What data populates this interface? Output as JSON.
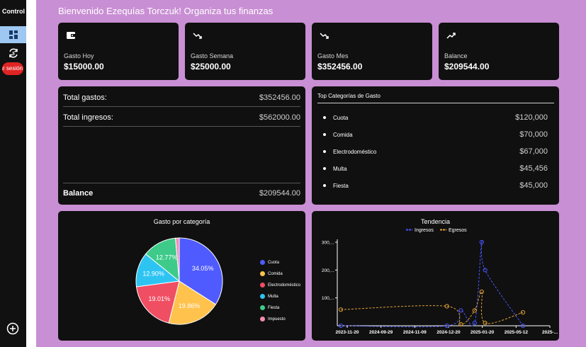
{
  "sidebar": {
    "title": "Control d",
    "logout_label": "Cerrar sesión",
    "icons": [
      "dashboard-icon",
      "sync-currency-icon",
      "add-circle-icon"
    ]
  },
  "header": {
    "greeting": "Bienvenido Ezequías Torczuk! Organiza tus finanzas"
  },
  "stats": [
    {
      "icon": "wallet-icon",
      "label": "Gasto Hoy",
      "value": "$15000.00"
    },
    {
      "icon": "trend-down-icon",
      "label": "Gasto Semana",
      "value": "$25000.00"
    },
    {
      "icon": "trend-down-icon",
      "label": "Gasto Mes",
      "value": "$352456.00"
    },
    {
      "icon": "trend-up-icon",
      "label": "Balance",
      "value": "$209544.00"
    }
  ],
  "summary": {
    "total_gastos_label": "Total gastos:",
    "total_gastos_value": "$352456.00",
    "total_ingresos_label": "Total ingresos:",
    "total_ingresos_value": "$562000.00",
    "balance_label": "Balance",
    "balance_value": "$209544.00"
  },
  "top_categories": {
    "title": "Top Categorías de Gasto",
    "items": [
      {
        "name": "Cuota",
        "amount": "$120,000"
      },
      {
        "name": "Comida",
        "amount": "$70,000"
      },
      {
        "name": "Electrodoméstico",
        "amount": "$67,000"
      },
      {
        "name": "Multa",
        "amount": "$45,456"
      },
      {
        "name": "Fiesta",
        "amount": "$45,000"
      }
    ]
  },
  "chart_data": [
    {
      "type": "pie",
      "title": "Gasto por categoría",
      "legend_position": "right",
      "categories": [
        "Cuota",
        "Comida",
        "Electrodoméstico",
        "Multa",
        "Fiesta",
        "Impuesto"
      ],
      "values": [
        34.05,
        19.86,
        19.01,
        12.9,
        12.77,
        1.41
      ],
      "labels": [
        "34.05%",
        "19.86%",
        "19.01%",
        "12.90%",
        "12.77%",
        ""
      ],
      "colors": [
        "#4f5bff",
        "#ffc24d",
        "#f04e63",
        "#2ec4f2",
        "#3ecb8a",
        "#f48bb0"
      ]
    },
    {
      "type": "line",
      "title": "Tendencia",
      "legend_position": "top",
      "x_tick_labels": [
        "2023-11-20",
        "2024-09-29",
        "2024-11-09",
        "2024-12-20",
        "2025-01-20",
        "2025-05-12",
        "2025-..."
      ],
      "y_tick_labels": [
        "300,...",
        "200,...",
        "100,..."
      ],
      "ylim": [
        0,
        300000
      ],
      "grid": false,
      "series": [
        {
          "name": "Ingresos",
          "color": "#4a55ff",
          "x": [
            "2023-11-20",
            "2024-09-29",
            "2024-11-09",
            "2024-12-20",
            "2025-01-10",
            "2025-01-20",
            "2025-05-12"
          ],
          "values": [
            0,
            0,
            55000,
            10000,
            300000,
            200000,
            0
          ]
        },
        {
          "name": "Egresos",
          "color": "#e0a233",
          "x": [
            "2023-11-20",
            "2024-09-29",
            "2024-11-09",
            "2024-12-20",
            "2025-01-10",
            "2025-01-20",
            "2025-05-12"
          ],
          "values": [
            58000,
            70000,
            5000,
            55000,
            122000,
            10000,
            48000
          ]
        }
      ]
    }
  ]
}
